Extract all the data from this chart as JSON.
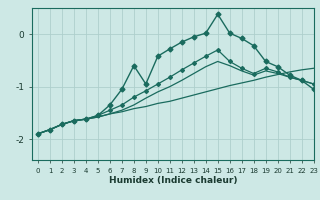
{
  "xlabel": "Humidex (Indice chaleur)",
  "xlim": [
    -0.5,
    23
  ],
  "ylim": [
    -2.4,
    0.5
  ],
  "background_color": "#cde8e5",
  "grid_color": "#aecfcc",
  "line_color": "#1a6b5e",
  "xticks": [
    0,
    1,
    2,
    3,
    4,
    5,
    6,
    7,
    8,
    9,
    10,
    11,
    12,
    13,
    14,
    15,
    16,
    17,
    18,
    19,
    20,
    21,
    22,
    23
  ],
  "yticks": [
    0,
    -1,
    -2
  ],
  "line1_x": [
    0,
    1,
    2,
    3,
    4,
    5,
    6,
    7,
    8,
    9,
    10,
    11,
    12,
    13,
    14,
    15,
    16,
    17,
    18,
    19,
    20,
    21,
    22,
    23
  ],
  "line1_y": [
    -1.9,
    -1.82,
    -1.72,
    -1.65,
    -1.62,
    -1.58,
    -1.52,
    -1.48,
    -1.42,
    -1.38,
    -1.32,
    -1.28,
    -1.22,
    -1.16,
    -1.1,
    -1.04,
    -0.98,
    -0.93,
    -0.88,
    -0.82,
    -0.77,
    -0.72,
    -0.68,
    -0.65
  ],
  "line2_x": [
    0,
    1,
    2,
    3,
    4,
    5,
    6,
    7,
    8,
    9,
    10,
    11,
    12,
    13,
    14,
    15,
    16,
    17,
    18,
    19,
    20,
    21,
    22,
    23
  ],
  "line2_y": [
    -1.9,
    -1.82,
    -1.72,
    -1.65,
    -1.62,
    -1.58,
    -1.52,
    -1.45,
    -1.35,
    -1.22,
    -1.1,
    -1.0,
    -0.88,
    -0.75,
    -0.62,
    -0.52,
    -0.6,
    -0.7,
    -0.78,
    -0.7,
    -0.75,
    -0.82,
    -0.88,
    -0.95
  ],
  "line3_x": [
    0,
    1,
    2,
    3,
    4,
    5,
    6,
    7,
    8,
    9,
    10,
    11,
    12,
    13,
    14,
    15,
    16,
    17,
    18,
    19,
    20,
    21,
    22,
    23
  ],
  "line3_y": [
    -1.9,
    -1.82,
    -1.72,
    -1.65,
    -1.62,
    -1.55,
    -1.35,
    -1.05,
    -0.6,
    -0.95,
    -0.42,
    -0.28,
    -0.15,
    -0.05,
    0.02,
    0.38,
    0.02,
    -0.08,
    -0.22,
    -0.52,
    -0.62,
    -0.78,
    -0.88,
    -1.05
  ],
  "line4_x": [
    0,
    1,
    2,
    3,
    4,
    5,
    6,
    7,
    8,
    9,
    10,
    11,
    12,
    13,
    14,
    15,
    16,
    17,
    18,
    19,
    20,
    21,
    22,
    23
  ],
  "line4_y": [
    -1.9,
    -1.82,
    -1.72,
    -1.65,
    -1.62,
    -1.55,
    -1.45,
    -1.35,
    -1.2,
    -1.08,
    -0.95,
    -0.82,
    -0.68,
    -0.55,
    -0.42,
    -0.3,
    -0.52,
    -0.65,
    -0.75,
    -0.65,
    -0.72,
    -0.82,
    -0.88,
    -0.95
  ]
}
